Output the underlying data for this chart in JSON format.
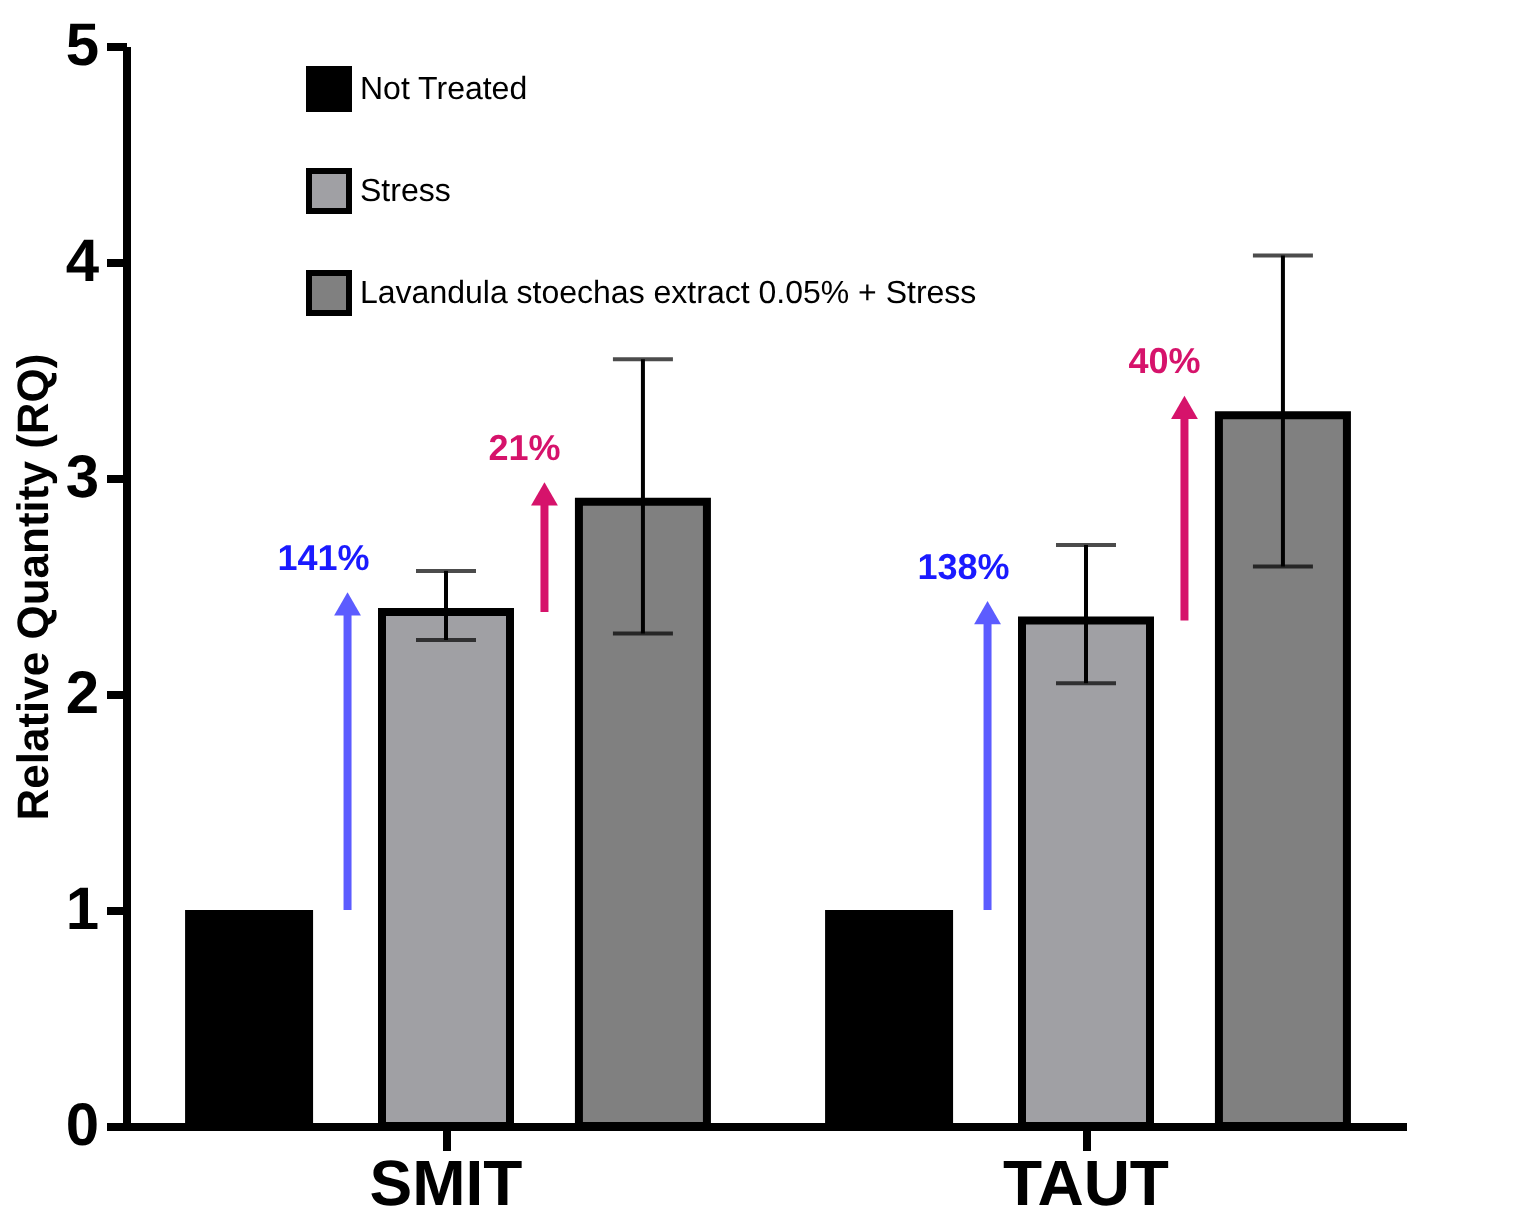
{
  "chart_data": {
    "type": "bar",
    "ylabel": "Relative Quantity (RQ)",
    "categories": [
      "SMIT",
      "TAUT"
    ],
    "series": [
      {
        "name": "Not Treated",
        "color": "#000000",
        "values": [
          1.0,
          1.0
        ]
      },
      {
        "name": "Stress",
        "color": "#a0a0a4",
        "values": [
          2.38,
          2.34
        ],
        "errors": [
          [
            2.25,
            2.57
          ],
          [
            2.05,
            2.69
          ]
        ]
      },
      {
        "name": "Lavandula stoechas extract 0.05% + Stress",
        "color": "#808080",
        "values": [
          2.89,
          3.29
        ],
        "errors": [
          [
            2.28,
            3.55
          ],
          [
            2.59,
            4.03
          ]
        ]
      }
    ],
    "annotations": [
      {
        "text": "141%",
        "x": "SMIT",
        "y": 2.38
      },
      "21%",
      {
        "text": "138%",
        "x": "TAUT",
        "y": 2.34
      },
      "40%"
    ],
    "ylim": [
      0,
      5
    ],
    "yticks": [
      0,
      1,
      2,
      3,
      4,
      5
    ],
    "grid": false,
    "legend": "top"
  }
}
